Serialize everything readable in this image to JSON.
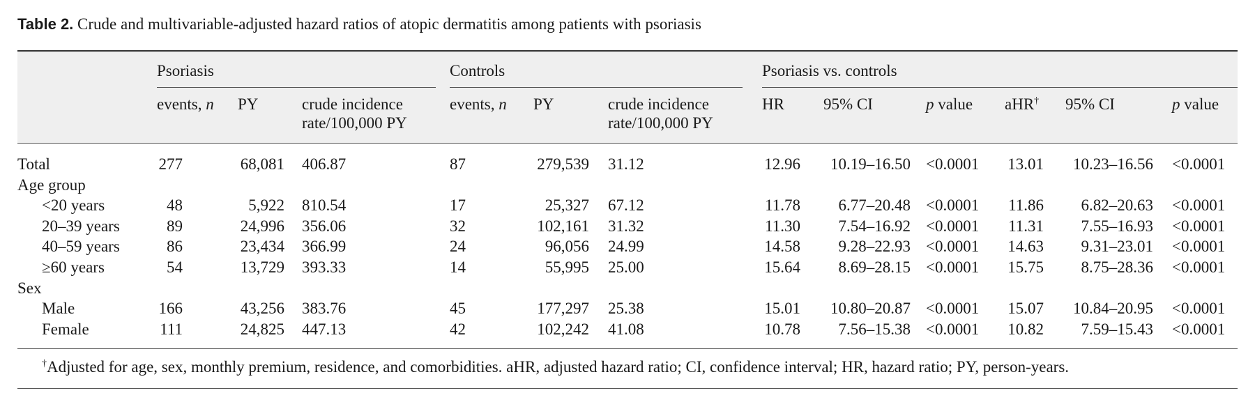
{
  "caption": {
    "lead": "Table 2.",
    "text": "Crude and multivariable-adjusted hazard ratios of atopic dermatitis among patients with psoriasis"
  },
  "groups": {
    "psoriasis": "Psoriasis",
    "controls": "Controls",
    "comparison": "Psoriasis vs. controls"
  },
  "columns": {
    "events_word": "events,",
    "n": "n",
    "py": "PY",
    "crude_line1": "crude incidence",
    "crude_line2": "rate/100,000 PY",
    "hr": "HR",
    "ci": "95% CI",
    "p": "p",
    "value": " value",
    "ahr": "aHR",
    "dagger": "†"
  },
  "rows": [
    {
      "label": "Total",
      "indent": false,
      "cells": [
        "277",
        "68,081",
        "406.87",
        "87",
        "279,539",
        "31.12",
        "12.96",
        "10.19–16.50",
        "<0.0001",
        "13.01",
        "10.23–16.56",
        "<0.0001"
      ]
    },
    {
      "label": "Age group",
      "indent": false,
      "cells": []
    },
    {
      "label": "<20 years",
      "indent": true,
      "cells": [
        "48",
        "5,922",
        "810.54",
        "17",
        "25,327",
        "67.12",
        "11.78",
        "6.77–20.48",
        "<0.0001",
        "11.86",
        "6.82–20.63",
        "<0.0001"
      ]
    },
    {
      "label": "20–39 years",
      "indent": true,
      "cells": [
        "89",
        "24,996",
        "356.06",
        "32",
        "102,161",
        "31.32",
        "11.30",
        "7.54–16.92",
        "<0.0001",
        "11.31",
        "7.55–16.93",
        "<0.0001"
      ]
    },
    {
      "label": "40–59 years",
      "indent": true,
      "cells": [
        "86",
        "23,434",
        "366.99",
        "24",
        "96,056",
        "24.99",
        "14.58",
        "9.28–22.93",
        "<0.0001",
        "14.63",
        "9.31–23.01",
        "<0.0001"
      ]
    },
    {
      "label": "≥60 years",
      "indent": true,
      "cells": [
        "54",
        "13,729",
        "393.33",
        "14",
        "55,995",
        "25.00",
        "15.64",
        "8.69–28.15",
        "<0.0001",
        "15.75",
        "8.75–28.36",
        "<0.0001"
      ]
    },
    {
      "label": "Sex",
      "indent": false,
      "cells": []
    },
    {
      "label": "Male",
      "indent": true,
      "cells": [
        "166",
        "43,256",
        "383.76",
        "45",
        "177,297",
        "25.38",
        "15.01",
        "10.80–20.87",
        "<0.0001",
        "15.07",
        "10.84–20.95",
        "<0.0001"
      ]
    },
    {
      "label": "Female",
      "indent": true,
      "cells": [
        "111",
        "24,825",
        "447.13",
        "42",
        "102,242",
        "41.08",
        "10.78",
        "7.56–15.38",
        "<0.0001",
        "10.82",
        "7.59–15.43",
        "<0.0001"
      ]
    }
  ],
  "footnote": {
    "dagger": "†",
    "text": "Adjusted for age, sex, monthly premium, residence, and comorbidities. aHR, adjusted hazard ratio; CI, confidence interval; HR, hazard ratio; PY, person-years."
  }
}
